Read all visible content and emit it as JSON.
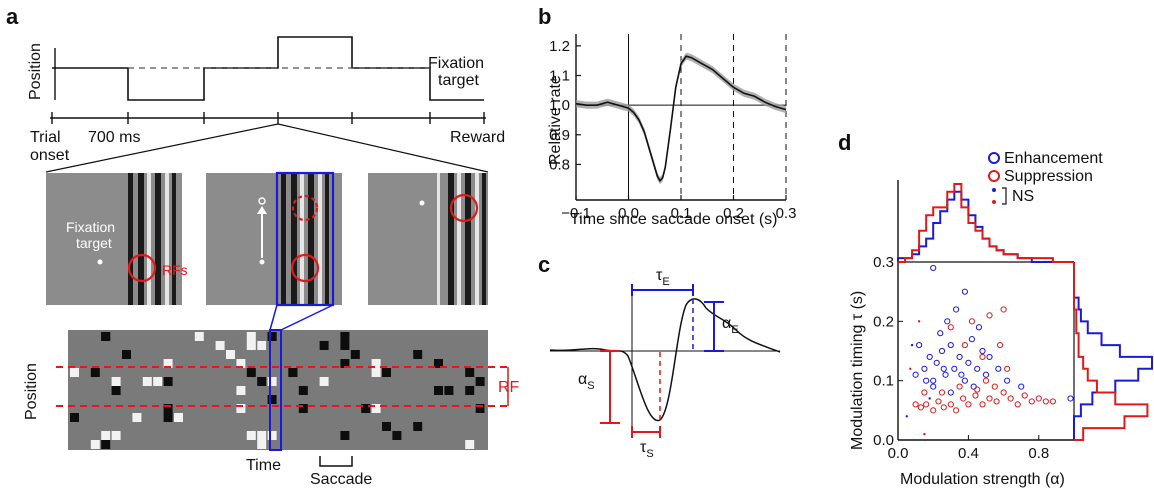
{
  "figure": {
    "panel_a": {
      "label": "a",
      "ylabel_position": "Position",
      "fixation_target_1": "Fixation",
      "fixation_target_2": "target",
      "trial_1": "Trial",
      "trial_2": "onset",
      "ms700": "700 ms",
      "reward": "Reward",
      "inset_fix_1": "Fixation",
      "inset_fix_2": "target",
      "rfs": "RFs",
      "raster_ylabel": "Position",
      "time": "Time",
      "saccade": "Saccade",
      "rf": "RF"
    },
    "panel_b": {
      "label": "b",
      "ylabel": "Relative rate",
      "xlabel": "Time since saccade onset (s)"
    },
    "panel_c": {
      "label": "c",
      "tau_e": "τ",
      "tau_e_sub": "E",
      "alpha_e": "α",
      "alpha_e_sub": "E",
      "alpha_s": "α",
      "alpha_s_sub": "S",
      "tau_s": "τ",
      "tau_s_sub": "S"
    },
    "panel_d": {
      "label": "d",
      "legend_enh": "Enhancement",
      "legend_sup": "Suppression",
      "legend_ns": "NS",
      "ylabel": "Modulation timing τ (s)",
      "xlabel": "Modulation strength (α)"
    }
  },
  "colors": {
    "enhancement": "#1a1adb",
    "suppression": "#e01a1a"
  },
  "chart_data": [
    {
      "type": "line",
      "panel": "b",
      "xlabel": "Time since saccade onset (s)",
      "ylabel": "Relative rate",
      "xlim": [
        -0.1,
        0.3
      ],
      "ylim": [
        0.68,
        1.24
      ],
      "xticks": [
        -0.1,
        0,
        0.1,
        0.2,
        0.3
      ],
      "xtick_labels": [
        "−0.1",
        "0.0",
        "0.1",
        "0.2",
        "0.3"
      ],
      "yticks": [
        0.8,
        0.9,
        1.0,
        1.1,
        1.2
      ],
      "ytick_labels": [
        "0.8",
        "0.9",
        "1.0",
        "1.1",
        "1.2"
      ],
      "vlines": [
        0,
        0.1,
        0.2,
        0.3
      ],
      "hline": 1.0,
      "x": [
        -0.1,
        -0.08,
        -0.06,
        -0.04,
        -0.02,
        0.0,
        0.01,
        0.02,
        0.03,
        0.04,
        0.05,
        0.055,
        0.06,
        0.065,
        0.07,
        0.08,
        0.09,
        0.1,
        0.11,
        0.12,
        0.14,
        0.16,
        0.18,
        0.2,
        0.22,
        0.24,
        0.26,
        0.28,
        0.3
      ],
      "y": [
        1.005,
        1.0,
        1.0,
        1.01,
        1.0,
        0.99,
        0.975,
        0.95,
        0.91,
        0.85,
        0.79,
        0.76,
        0.745,
        0.755,
        0.79,
        0.92,
        1.06,
        1.14,
        1.165,
        1.16,
        1.14,
        1.12,
        1.09,
        1.06,
        1.04,
        1.03,
        1.01,
        0.995,
        0.985
      ]
    },
    {
      "type": "scatter",
      "panel": "d",
      "xlabel": "Modulation strength (α)",
      "ylabel": "Modulation timing τ (s)",
      "xlim": [
        0,
        1
      ],
      "ylim": [
        0,
        0.3
      ],
      "xticks": [
        0,
        0.4,
        0.8
      ],
      "xtick_labels": [
        "0.0",
        "0.4",
        "0.8"
      ],
      "yticks": [
        0,
        0.1,
        0.2,
        0.3
      ],
      "ytick_labels": [
        "0.0",
        "0.1",
        "0.2",
        "0.3"
      ],
      "series": [
        {
          "name": "Enhancement",
          "color": "#1a1adb",
          "points": [
            [
              0.15,
              0.12
            ],
            [
              0.18,
              0.14
            ],
            [
              0.2,
              0.1
            ],
            [
              0.22,
              0.13
            ],
            [
              0.25,
              0.15
            ],
            [
              0.27,
              0.11
            ],
            [
              0.3,
              0.16
            ],
            [
              0.32,
              0.12
            ],
            [
              0.35,
              0.14
            ],
            [
              0.38,
              0.1
            ],
            [
              0.4,
              0.13
            ],
            [
              0.42,
              0.17
            ],
            [
              0.45,
              0.12
            ],
            [
              0.48,
              0.15
            ],
            [
              0.5,
              0.11
            ],
            [
              0.28,
              0.2
            ],
            [
              0.33,
              0.22
            ],
            [
              0.38,
              0.25
            ],
            [
              0.24,
              0.18
            ],
            [
              0.12,
              0.16
            ],
            [
              0.1,
              0.11
            ],
            [
              0.2,
              0.09
            ],
            [
              0.3,
              0.08
            ],
            [
              0.43,
              0.09
            ],
            [
              0.52,
              0.14
            ],
            [
              0.57,
              0.12
            ],
            [
              0.62,
              0.1
            ],
            [
              0.7,
              0.09
            ],
            [
              0.2,
              0.29
            ],
            [
              0.46,
              0.19
            ],
            [
              0.36,
              0.11
            ],
            [
              0.26,
              0.12
            ],
            [
              0.16,
              0.1
            ],
            [
              0.98,
              0.07
            ]
          ]
        },
        {
          "name": "Suppression",
          "color": "#e01a1a",
          "points": [
            [
              0.1,
              0.06
            ],
            [
              0.13,
              0.055
            ],
            [
              0.16,
              0.06
            ],
            [
              0.2,
              0.05
            ],
            [
              0.23,
              0.065
            ],
            [
              0.26,
              0.055
            ],
            [
              0.3,
              0.06
            ],
            [
              0.33,
              0.05
            ],
            [
              0.37,
              0.07
            ],
            [
              0.4,
              0.06
            ],
            [
              0.44,
              0.075
            ],
            [
              0.48,
              0.06
            ],
            [
              0.52,
              0.07
            ],
            [
              0.56,
              0.065
            ],
            [
              0.6,
              0.08
            ],
            [
              0.64,
              0.07
            ],
            [
              0.68,
              0.06
            ],
            [
              0.72,
              0.075
            ],
            [
              0.76,
              0.065
            ],
            [
              0.8,
              0.07
            ],
            [
              0.84,
              0.065
            ],
            [
              0.88,
              0.065
            ],
            [
              0.25,
              0.08
            ],
            [
              0.35,
              0.09
            ],
            [
              0.45,
              0.085
            ],
            [
              0.5,
              0.1
            ],
            [
              0.55,
              0.09
            ],
            [
              0.62,
              0.12
            ],
            [
              0.3,
              0.19
            ],
            [
              0.42,
              0.2
            ],
            [
              0.52,
              0.21
            ],
            [
              0.6,
              0.22
            ],
            [
              0.38,
              0.16
            ],
            [
              0.48,
              0.14
            ],
            [
              0.58,
              0.16
            ],
            [
              0.15,
              0.08
            ]
          ]
        },
        {
          "name": "NS",
          "points": [
            [
              0.08,
              0.16
            ],
            [
              0.12,
              0.2
            ],
            [
              0.05,
              0.04
            ],
            [
              0.15,
              0.01
            ],
            [
              0.18,
              0.07
            ],
            [
              0.07,
              0.12
            ]
          ]
        }
      ],
      "hist_x_enh": [
        1,
        1,
        2,
        4,
        6,
        10,
        13,
        16,
        18,
        16,
        12,
        9,
        6,
        4,
        3,
        2,
        2,
        1,
        1,
        0,
        0,
        0,
        0,
        0,
        0
      ],
      "hist_x_sup": [
        0,
        1,
        3,
        8,
        12,
        14,
        14,
        18,
        20,
        14,
        10,
        8,
        6,
        4,
        3,
        2,
        2,
        1,
        1,
        1,
        1,
        1,
        0,
        0,
        0
      ],
      "hist_y_enh": [
        0,
        0,
        3,
        8,
        18,
        28,
        34,
        20,
        12,
        6,
        3,
        2,
        0,
        0,
        0
      ],
      "hist_y_sup": [
        4,
        22,
        32,
        18,
        10,
        6,
        4,
        2,
        2,
        1,
        1,
        0,
        0,
        0,
        0
      ]
    }
  ]
}
